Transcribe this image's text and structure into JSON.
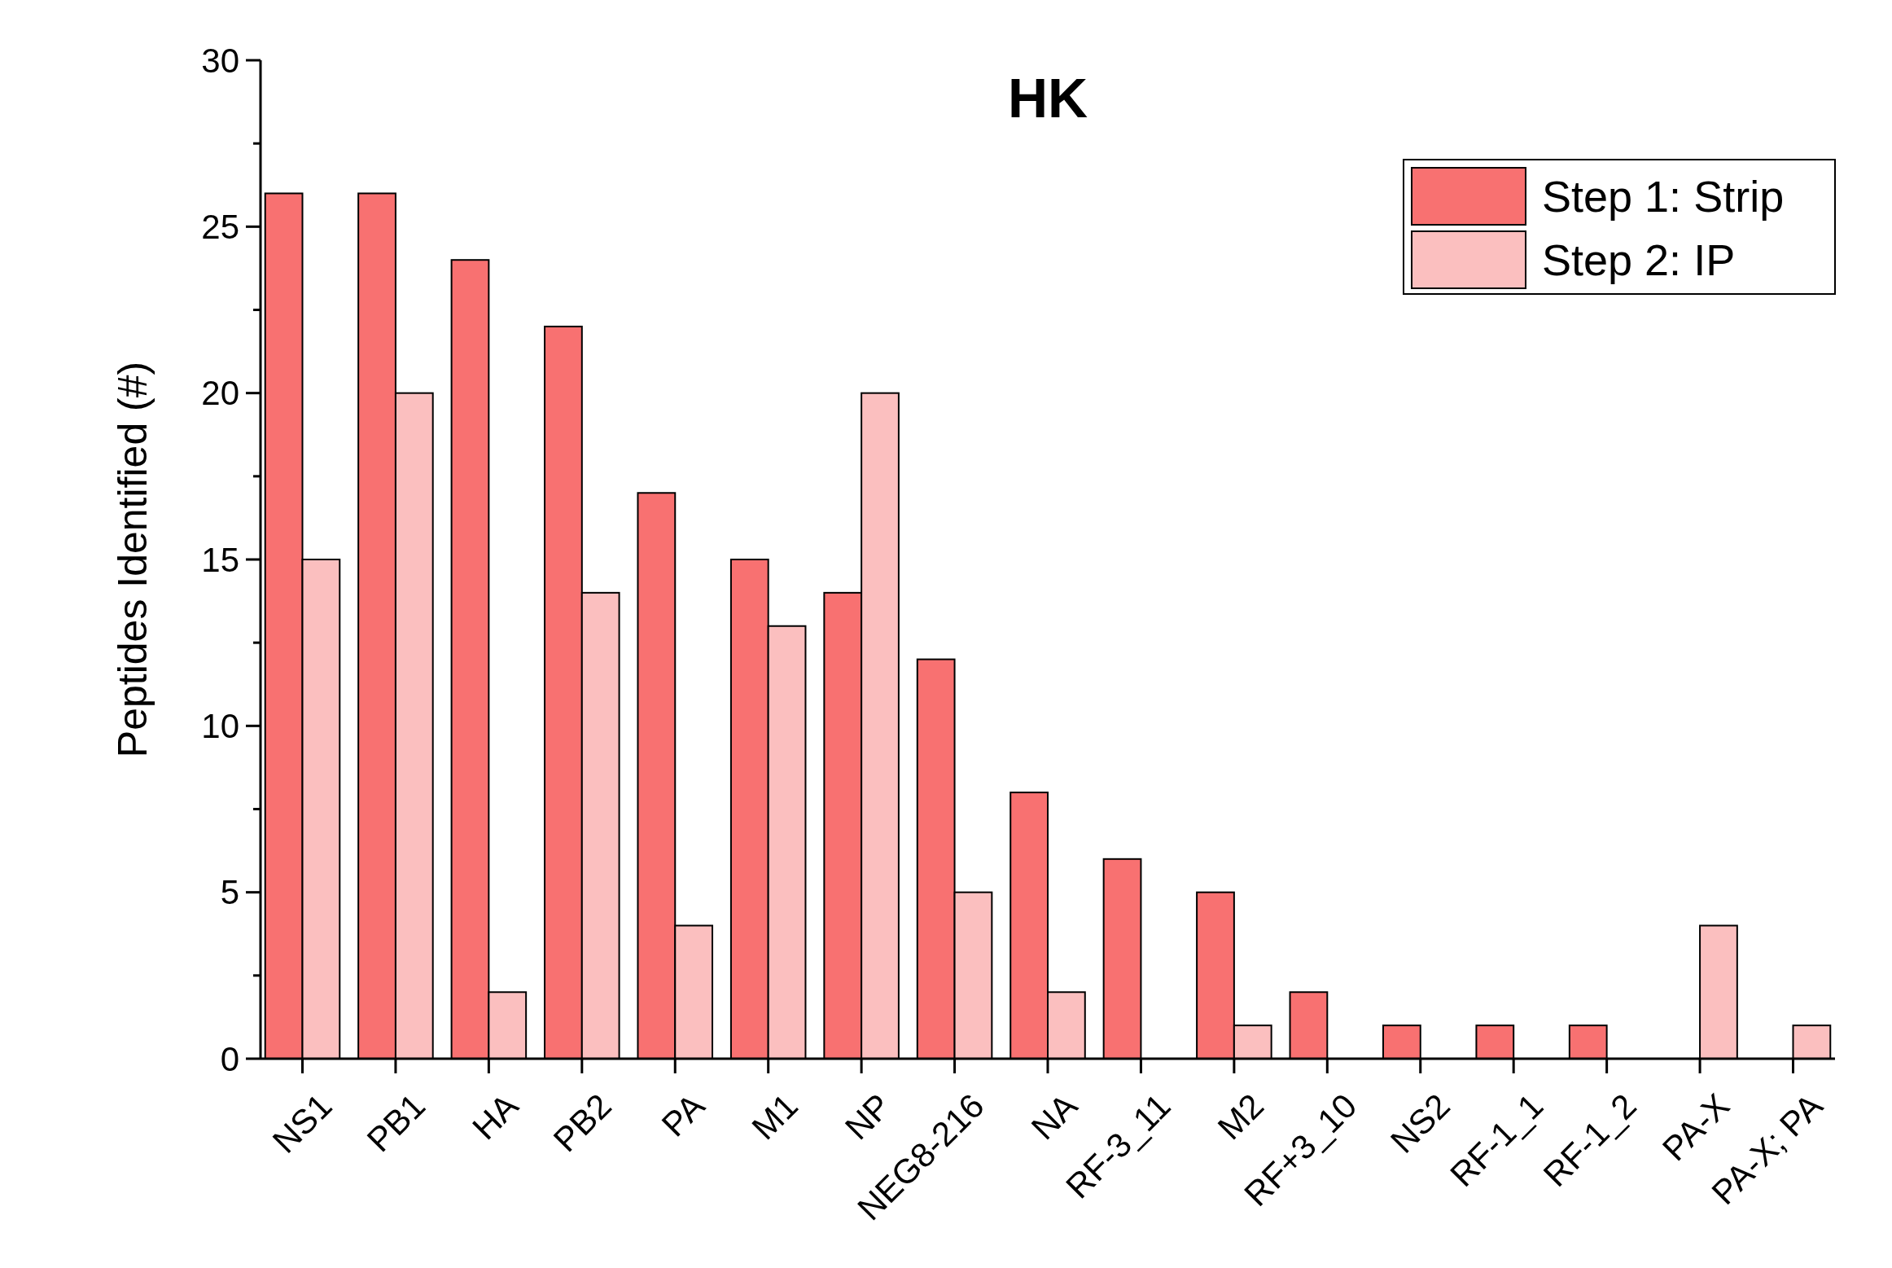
{
  "chart_data": {
    "type": "bar",
    "title": "HK",
    "ylabel": "Peptides Identified (#)",
    "categories": [
      "NS1",
      "PB1",
      "HA",
      "PB2",
      "PA",
      "M1",
      "NP",
      "NEG8-216",
      "NA",
      "RF-3_11",
      "M2",
      "RF+3_10",
      "NS2",
      "RF-1_1",
      "RF-1_2",
      "PA-X",
      "PA-X; PA"
    ],
    "series": [
      {
        "name": "Step 1: Strip",
        "color": "#f87171",
        "values": [
          26,
          26,
          24,
          22,
          17,
          15,
          14,
          12,
          8,
          6,
          5,
          2,
          1,
          1,
          1,
          null,
          null
        ]
      },
      {
        "name": "Step 2: IP",
        "color": "#fbbfbf",
        "values": [
          15,
          20,
          2,
          14,
          4,
          13,
          20,
          5,
          2,
          null,
          1,
          null,
          null,
          null,
          null,
          4,
          1
        ]
      }
    ],
    "ylim": [
      0,
      30
    ],
    "yticks": [
      0,
      {
        "value": 2.5,
        "label": null
      },
      5,
      {
        "value": 7.5,
        "label": null
      },
      10,
      {
        "value": 12.5,
        "label": null
      },
      15,
      {
        "value": 17.5,
        "label": null
      },
      20,
      {
        "value": 22.5,
        "label": null
      },
      25,
      {
        "value": 27.5,
        "label": null
      },
      30
    ],
    "grid": false,
    "legend": "top right"
  }
}
